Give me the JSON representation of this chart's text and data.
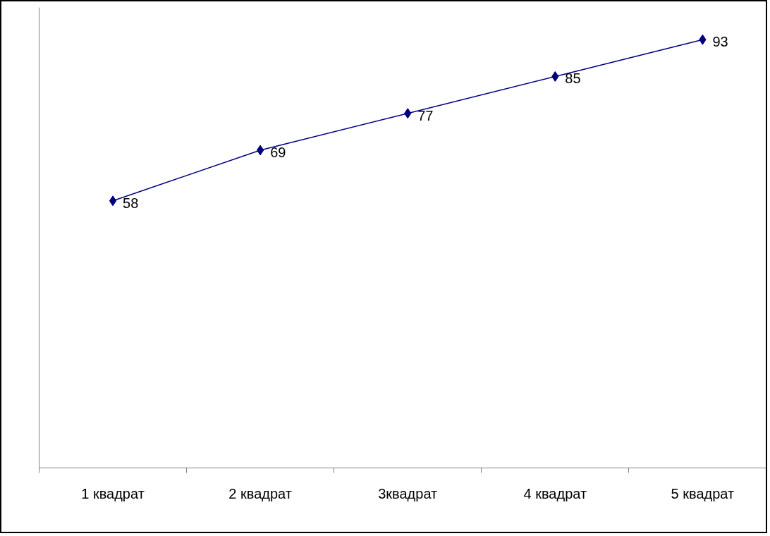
{
  "chart_data": {
    "type": "line",
    "categories": [
      "1 квадрат",
      "2 квадрат",
      "3квадрат",
      "4 квадрат",
      "5 квадрат"
    ],
    "values": [
      58,
      69,
      77,
      85,
      93
    ],
    "color": "#000080",
    "marker": "diamond",
    "line_style": "solid",
    "data_labels": true,
    "ylim": [
      0,
      100
    ],
    "tick_labels": "x",
    "grid": false
  }
}
